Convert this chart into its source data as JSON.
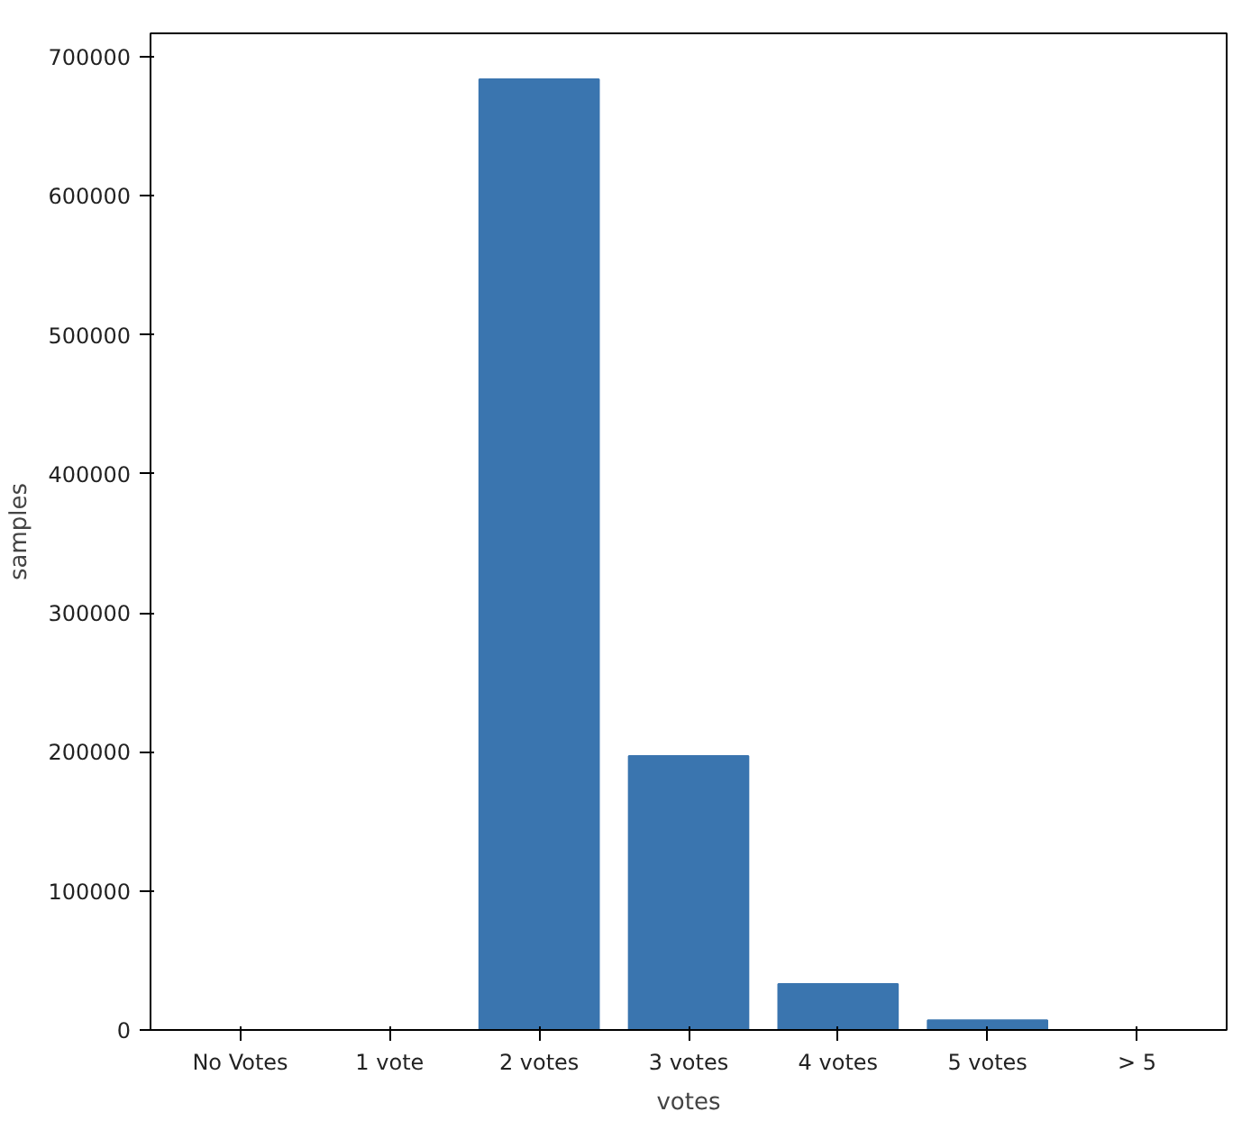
{
  "chart_data": {
    "type": "bar",
    "xlabel": "votes",
    "ylabel": "samples",
    "categories": [
      "No Votes",
      "1 vote",
      "2 votes",
      "3 votes",
      "4 votes",
      "5 votes",
      "> 5"
    ],
    "values": [
      0,
      0,
      684000,
      197000,
      33000,
      7000,
      0
    ],
    "color": "#3a75af",
    "ylim": [
      0,
      717000
    ],
    "yticks": [
      0,
      100000,
      200000,
      300000,
      400000,
      500000,
      600000,
      700000
    ],
    "grid": false
  }
}
